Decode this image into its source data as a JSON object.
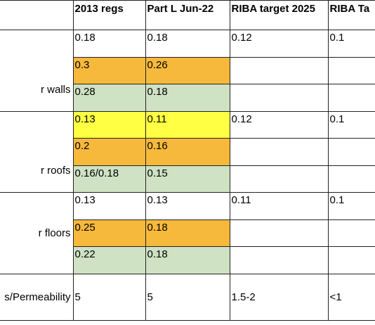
{
  "colors": {
    "orange": "#f6b93b",
    "green": "#cfe2c4",
    "yellow": "#ffff44",
    "white": "#ffffff",
    "border": "#222222"
  },
  "header": {
    "col0": "",
    "col1": "2013 regs",
    "col2": "Part L Jun-22",
    "col3": "RIBA target 2025",
    "col4": "RIBA Ta"
  },
  "groups": {
    "walls": {
      "label": "r walls",
      "rows": [
        {
          "c1": "0.18",
          "c2": "0.18",
          "c3": "0.12",
          "c4": "0.1",
          "fill": "white"
        },
        {
          "c1": "0.3",
          "c2": "0.26",
          "c3": "",
          "c4": "",
          "fill": "orange"
        },
        {
          "c1": "0.28",
          "c2": "0.18",
          "c3": "",
          "c4": "",
          "fill": "green"
        }
      ]
    },
    "roofs": {
      "label": "r roofs",
      "rows": [
        {
          "c1": "0.13",
          "c2": "0.11",
          "c3": "0.12",
          "c4": "0.1",
          "fill": "yellow"
        },
        {
          "c1": "0.2",
          "c2": "0.16",
          "c3": "",
          "c4": "",
          "fill": "orange"
        },
        {
          "c1": "0.16/0.18",
          "c2": "0.15",
          "c3": "",
          "c4": "",
          "fill": "green"
        }
      ]
    },
    "floors": {
      "label": "r floors",
      "rows": [
        {
          "c1": "0.13",
          "c2": "0.13",
          "c3": "0.11",
          "c4": "0.1",
          "fill": "white"
        },
        {
          "c1": "0.25",
          "c2": "0.18",
          "c3": "",
          "c4": "",
          "fill": "orange"
        },
        {
          "c1": "0.22",
          "c2": "0.18",
          "c3": "",
          "c4": "",
          "fill": "green"
        }
      ]
    }
  },
  "permeability": {
    "label": "s/Permeability",
    "c1": "5",
    "c2": "5",
    "c3": "1.5-2",
    "c4": "<1"
  }
}
